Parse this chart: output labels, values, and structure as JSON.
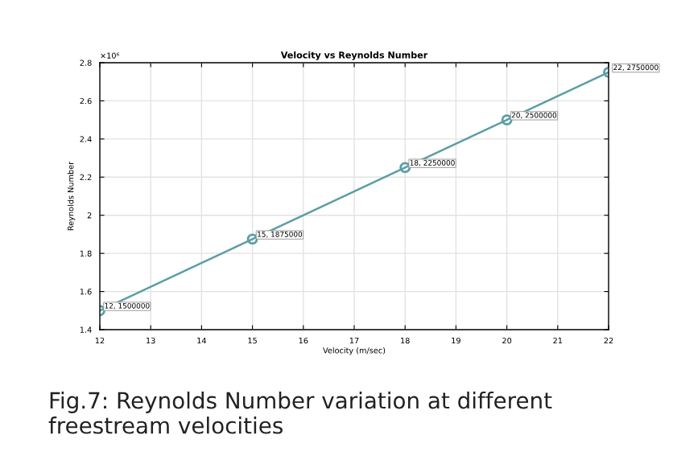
{
  "chart_data": {
    "type": "line",
    "title": "Velocity vs Reynolds Number",
    "xlabel": "Velocity (m/sec)",
    "ylabel": "Reynolds Number",
    "x": [
      12,
      15,
      18,
      20,
      22
    ],
    "series": [
      {
        "color": "#5b9ea6",
        "values": [
          1.5,
          1.875,
          2.25,
          2.5,
          2.75
        ]
      }
    ],
    "xlim": [
      12,
      22
    ],
    "xticks": [
      12,
      13,
      14,
      15,
      16,
      17,
      18,
      19,
      20,
      21,
      22
    ],
    "ylim": [
      1.4,
      2.8
    ],
    "yticks": [
      1.4,
      1.6,
      1.8,
      2,
      2.2,
      2.4,
      2.6,
      2.8
    ],
    "grid": true,
    "marker": "circle",
    "line_style": "solid",
    "annotations": [
      "×10⁶",
      {
        "text": "12, 1500000",
        "x": 12,
        "y": 1.5
      },
      {
        "text": "15, 1875000",
        "x": 15,
        "y": 1.875
      },
      {
        "text": "18, 2250000",
        "x": 18,
        "y": 2.25
      },
      {
        "text": "20, 2500000",
        "x": 20,
        "y": 2.5
      },
      {
        "text": "22, 2750000",
        "x": 22,
        "y": 2.75
      },
      "Fig.7: Reynolds Number variation at different freestream velocities"
    ]
  }
}
